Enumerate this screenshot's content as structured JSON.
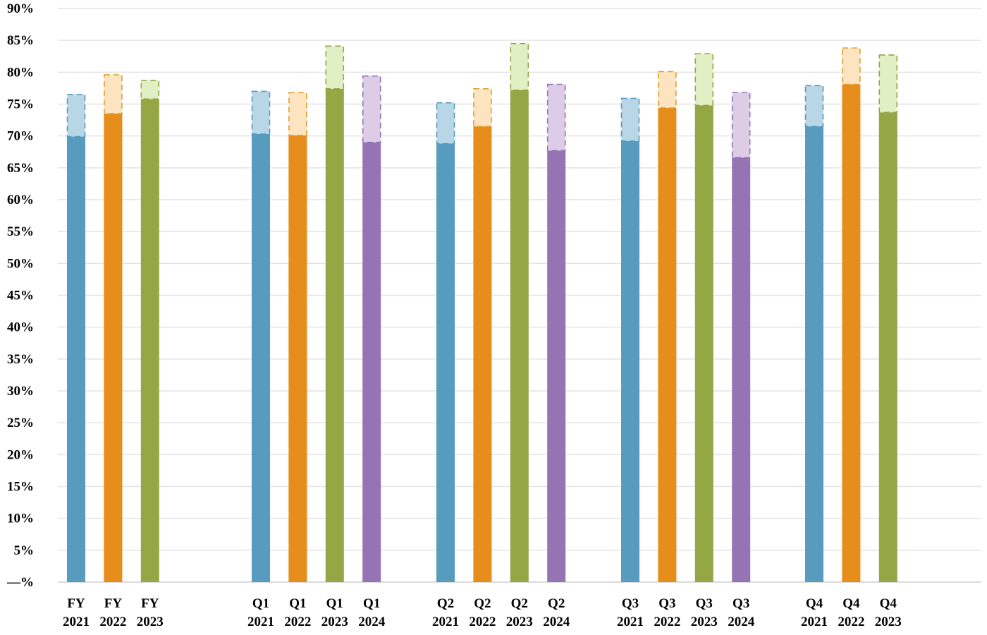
{
  "chart_data": {
    "type": "bar",
    "stacked": true,
    "ylim": [
      0,
      90
    ],
    "y_ticks": [
      {
        "value": 0,
        "label": "—%"
      },
      {
        "value": 5,
        "label": "5%"
      },
      {
        "value": 10,
        "label": "10%"
      },
      {
        "value": 15,
        "label": "15%"
      },
      {
        "value": 20,
        "label": "20%"
      },
      {
        "value": 25,
        "label": "25%"
      },
      {
        "value": 30,
        "label": "30%"
      },
      {
        "value": 35,
        "label": "35%"
      },
      {
        "value": 40,
        "label": "40%"
      },
      {
        "value": 45,
        "label": "45%"
      },
      {
        "value": 50,
        "label": "50%"
      },
      {
        "value": 55,
        "label": "55%"
      },
      {
        "value": 60,
        "label": "60%"
      },
      {
        "value": 65,
        "label": "65%"
      },
      {
        "value": 70,
        "label": "70%"
      },
      {
        "value": 75,
        "label": "75%"
      },
      {
        "value": 80,
        "label": "80%"
      },
      {
        "value": 85,
        "label": "85%"
      },
      {
        "value": 90,
        "label": "90%"
      }
    ],
    "grid": true,
    "legend": "none",
    "colors": {
      "2021": {
        "solid": "#579bbf",
        "light": "#b8d6e6",
        "dash": "#579bbf"
      },
      "2022": {
        "solid": "#e68d1c",
        "light": "#fde4c0",
        "dash": "#e0a030"
      },
      "2023": {
        "solid": "#95a645",
        "light": "#e0f0c4",
        "dash": "#95a645"
      },
      "2024": {
        "solid": "#9474b2",
        "light": "#dccce6",
        "dash": "#9474b2"
      }
    },
    "groups": [
      {
        "period": "FY",
        "bars": [
          {
            "year": "2021",
            "label": [
              "FY",
              "2021"
            ],
            "value": 69.9,
            "upper": 76.5
          },
          {
            "year": "2022",
            "label": [
              "FY",
              "2022"
            ],
            "value": 73.5,
            "upper": 79.6
          },
          {
            "year": "2023",
            "label": [
              "FY",
              "2023"
            ],
            "value": 75.8,
            "upper": 78.7
          }
        ]
      },
      {
        "period": "Q1",
        "bars": [
          {
            "year": "2021",
            "label": [
              "Q1",
              "2021"
            ],
            "value": 70.3,
            "upper": 77.0
          },
          {
            "year": "2022",
            "label": [
              "Q1",
              "2022"
            ],
            "value": 70.1,
            "upper": 76.8
          },
          {
            "year": "2023",
            "label": [
              "Q1",
              "2023"
            ],
            "value": 77.4,
            "upper": 84.1
          },
          {
            "year": "2024",
            "label": [
              "Q1",
              "2024"
            ],
            "value": 69.0,
            "upper": 79.4
          }
        ]
      },
      {
        "period": "Q2",
        "bars": [
          {
            "year": "2021",
            "label": [
              "Q2",
              "2021"
            ],
            "value": 68.8,
            "upper": 75.2
          },
          {
            "year": "2022",
            "label": [
              "Q2",
              "2022"
            ],
            "value": 71.5,
            "upper": 77.4
          },
          {
            "year": "2023",
            "label": [
              "Q2",
              "2023"
            ],
            "value": 77.2,
            "upper": 84.5
          },
          {
            "year": "2024",
            "label": [
              "Q2",
              "2024"
            ],
            "value": 67.7,
            "upper": 78.1
          }
        ]
      },
      {
        "period": "Q3",
        "bars": [
          {
            "year": "2021",
            "label": [
              "Q3",
              "2021"
            ],
            "value": 69.2,
            "upper": 75.9
          },
          {
            "year": "2022",
            "label": [
              "Q3",
              "2022"
            ],
            "value": 74.4,
            "upper": 80.1
          },
          {
            "year": "2023",
            "label": [
              "Q3",
              "2023"
            ],
            "value": 74.8,
            "upper": 82.9
          },
          {
            "year": "2024",
            "label": [
              "Q3",
              "2024"
            ],
            "value": 66.6,
            "upper": 76.8
          }
        ]
      },
      {
        "period": "Q4",
        "bars": [
          {
            "year": "2021",
            "label": [
              "Q4",
              "2021"
            ],
            "value": 71.5,
            "upper": 77.9
          },
          {
            "year": "2022",
            "label": [
              "Q4",
              "2022"
            ],
            "value": 78.1,
            "upper": 83.8
          },
          {
            "year": "2023",
            "label": [
              "Q4",
              "2023"
            ],
            "value": 73.7,
            "upper": 82.7
          }
        ]
      }
    ]
  }
}
